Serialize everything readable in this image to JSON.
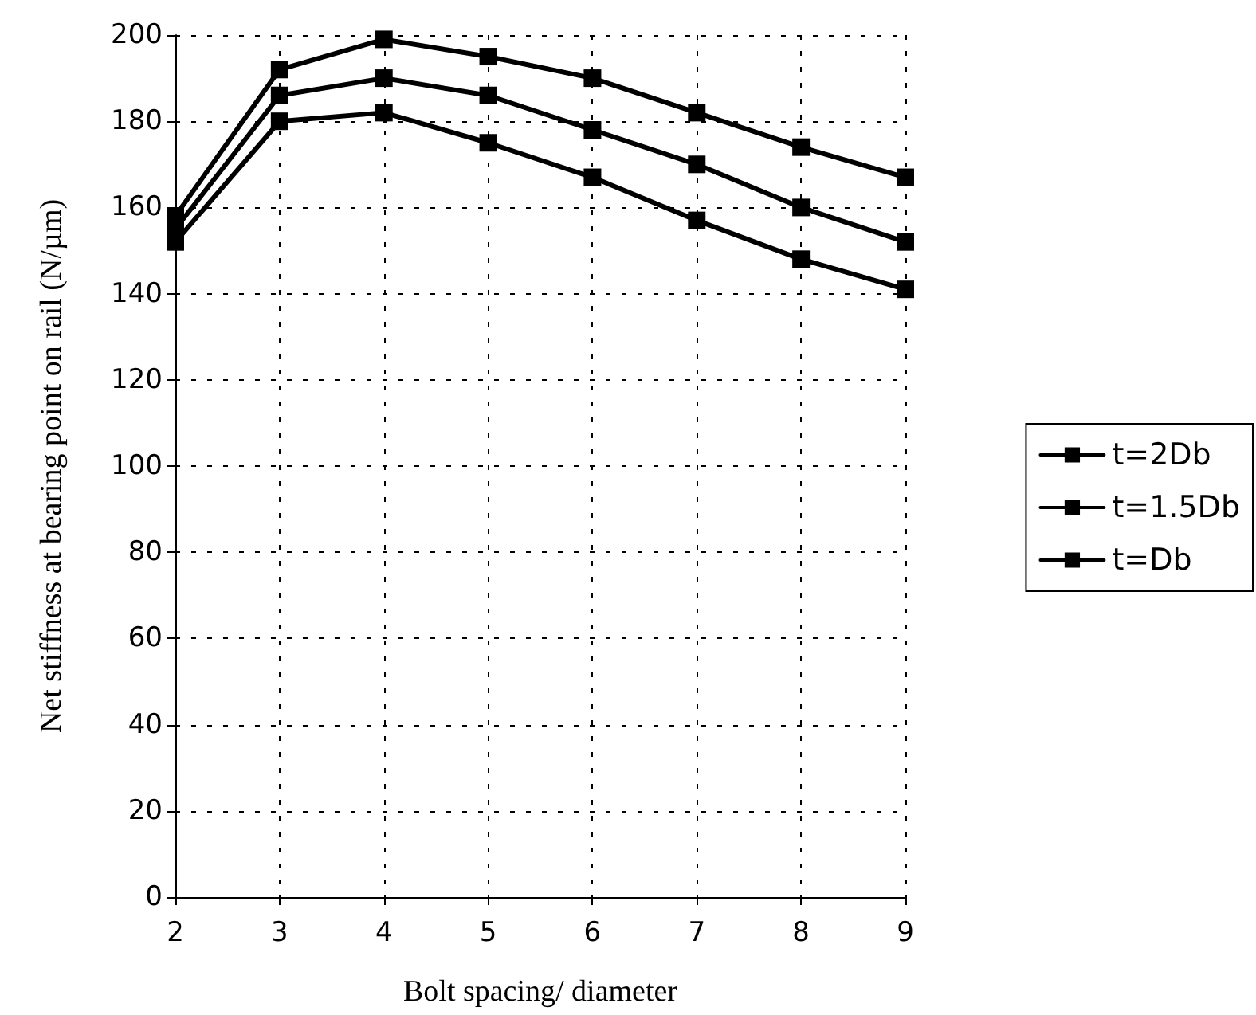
{
  "chart_data": {
    "type": "line",
    "xlabel": "Bolt spacing/ diameter",
    "ylabel": "Net stiffness at bearing point on rail (N/µm)",
    "x": [
      2,
      3,
      4,
      5,
      6,
      7,
      8,
      9
    ],
    "series": [
      {
        "name": "t=2Db",
        "color": "#000000",
        "values": [
          158,
          192,
          199,
          195,
          190,
          182,
          174,
          167
        ]
      },
      {
        "name": "t=1.5Db",
        "color": "#000000",
        "values": [
          155,
          186,
          190,
          186,
          178,
          170,
          160,
          152
        ]
      },
      {
        "name": "t=Db",
        "color": "#000000",
        "values": [
          152,
          180,
          182,
          175,
          167,
          157,
          148,
          141
        ]
      }
    ],
    "xlim": [
      2,
      9
    ],
    "xticks": [
      2,
      3,
      4,
      5,
      6,
      7,
      8,
      9
    ],
    "ylim": [
      0,
      200
    ],
    "yticks": [
      0,
      20,
      40,
      60,
      80,
      100,
      120,
      140,
      160,
      180,
      200
    ],
    "grid": true,
    "legend": "right",
    "marker": "square",
    "line_style": "solid"
  }
}
